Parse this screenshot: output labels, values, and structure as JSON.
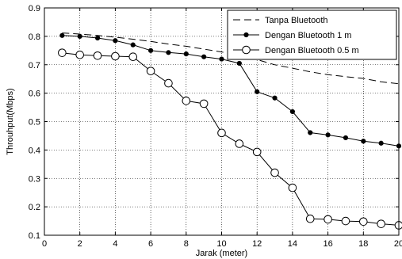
{
  "chart_data": {
    "type": "line",
    "xlabel": "Jarak (meter)",
    "ylabel": "Throuhput(Mbps)",
    "xlim": [
      0,
      20
    ],
    "ylim": [
      0.1,
      0.9
    ],
    "xticks": [
      0,
      2,
      4,
      6,
      8,
      10,
      12,
      14,
      16,
      18,
      20
    ],
    "yticks": [
      0.1,
      0.2,
      0.3,
      0.4,
      0.5,
      0.6,
      0.7,
      0.8,
      0.9
    ],
    "grid": true,
    "legend_position": "top-right",
    "series": [
      {
        "name": "Tanpa Bluetooth",
        "style": "dashed",
        "marker": "none",
        "color": "#000000",
        "x": [
          1,
          2,
          3,
          4,
          5,
          6,
          7,
          8,
          9,
          10,
          11,
          12,
          13,
          14,
          15,
          16,
          17,
          18,
          19,
          20
        ],
        "y": [
          0.812,
          0.808,
          0.803,
          0.797,
          0.79,
          0.782,
          0.773,
          0.765,
          0.755,
          0.745,
          0.732,
          0.718,
          0.7,
          0.688,
          0.675,
          0.665,
          0.658,
          0.652,
          0.64,
          0.633
        ]
      },
      {
        "name": "Dengan Bluetooth 1 m",
        "style": "solid",
        "marker": "filled-dot",
        "color": "#000000",
        "x": [
          1,
          2,
          3,
          4,
          5,
          6,
          7,
          8,
          9,
          10,
          11,
          12,
          13,
          14,
          15,
          16,
          17,
          18,
          19,
          20
        ],
        "y": [
          0.803,
          0.8,
          0.794,
          0.785,
          0.77,
          0.75,
          0.743,
          0.738,
          0.728,
          0.72,
          0.705,
          0.605,
          0.583,
          0.535,
          0.461,
          0.453,
          0.443,
          0.431,
          0.424,
          0.414
        ]
      },
      {
        "name": "Dengan Bluetooth 0.5 m",
        "style": "solid",
        "marker": "open-circle",
        "color": "#000000",
        "x": [
          1,
          2,
          3,
          4,
          5,
          6,
          7,
          8,
          9,
          10,
          11,
          12,
          13,
          14,
          15,
          16,
          17,
          18,
          19,
          20
        ],
        "y": [
          0.742,
          0.735,
          0.732,
          0.73,
          0.728,
          0.678,
          0.635,
          0.573,
          0.563,
          0.46,
          0.422,
          0.393,
          0.32,
          0.267,
          0.158,
          0.156,
          0.15,
          0.148,
          0.14,
          0.135
        ]
      }
    ]
  }
}
